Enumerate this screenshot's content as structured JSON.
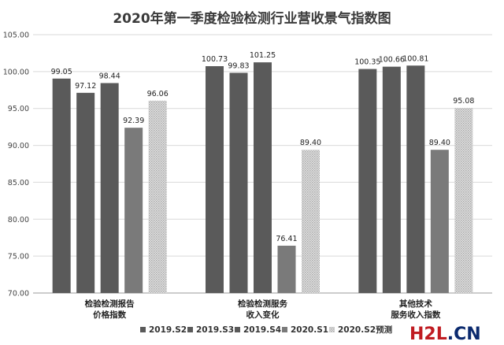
{
  "chart_data": {
    "type": "bar",
    "title": "2020年第一季度检验检测行业营收景气指数图",
    "categories": [
      [
        "检验检测报告",
        "价格指数"
      ],
      [
        "检验检测服务",
        "收入变化"
      ],
      [
        "其他技术",
        "服务收入指数"
      ]
    ],
    "series": [
      {
        "name": "2019.S2",
        "values": [
          99.05,
          100.73,
          100.35
        ],
        "color": "#5a5a5a",
        "pattern": "solid"
      },
      {
        "name": "2019.S3",
        "values": [
          97.12,
          99.83,
          100.66
        ],
        "color": "#5a5a5a",
        "pattern": "solid"
      },
      {
        "name": "2019.S4",
        "values": [
          98.44,
          101.25,
          100.81
        ],
        "color": "#5a5a5a",
        "pattern": "solid"
      },
      {
        "name": "2020.S1",
        "values": [
          92.39,
          76.41,
          89.4
        ],
        "color": "#7a7a7a",
        "pattern": "solid"
      },
      {
        "name": "2020.S2预测",
        "values": [
          96.06,
          89.4,
          95.08
        ],
        "color": "#c8c8c8",
        "pattern": "dotted"
      }
    ],
    "data_labels": [
      [
        "99.05",
        "100.73",
        "100.35"
      ],
      [
        "97.12",
        "99.83",
        "100.66"
      ],
      [
        "98.44",
        "101.25",
        "100.81"
      ],
      [
        "92.39",
        "76.41",
        "89.40"
      ],
      [
        "96.06",
        "89.40",
        "95.08"
      ]
    ],
    "ylim": [
      70,
      105
    ],
    "yticks": [
      "70.00",
      "75.00",
      "80.00",
      "85.00",
      "90.00",
      "95.00",
      "100.00",
      "105.00"
    ],
    "grid": true,
    "legend_position": "bottom"
  },
  "watermark": {
    "part1": "H2L",
    "part2": ".CN"
  }
}
